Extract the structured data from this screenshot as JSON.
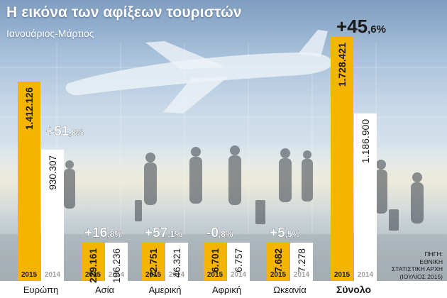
{
  "title": "Η εικόνα των αφίξεων τουριστών",
  "subtitle": "Ιανουάριος-Μάρτιος",
  "source_lines": [
    "ΠΗΓΗ:",
    "ΕΘΝΙΚΗ",
    "ΣΤΑΤΙΣΤΙΚΗ ΑΡΧΗ",
    "(ΙΟΥΛΙΟΣ 2015)"
  ],
  "colors": {
    "bar_2015": "#f5b400",
    "bar_2014": "#ffffff",
    "text_dark": "#1a1a1a",
    "text_light": "#ffffff"
  },
  "chart_data": {
    "type": "bar",
    "categories": [
      "Ευρώπη",
      "Ασία",
      "Αμερική",
      "Αφρική",
      "Ωκεανία",
      "Σύνολο"
    ],
    "highlight_category": "Σύνολο",
    "series": [
      {
        "name": "2015",
        "values": [
          1412126,
          229161,
          72751,
          6701,
          7682,
          1728421
        ],
        "labels": [
          "1.412.126",
          "229.161",
          "72.751",
          "6.701",
          "7.682",
          "1.728.421"
        ]
      },
      {
        "name": "2014",
        "values": [
          930307,
          196236,
          46321,
          6757,
          7278,
          1186900
        ],
        "labels": [
          "930.307",
          "196.236",
          "46.321",
          "6.757",
          "7.278",
          "1.186.900"
        ]
      }
    ],
    "change_labels": [
      {
        "sign": "+",
        "integer": "51",
        "decimal": ",8",
        "unit": "%"
      },
      {
        "sign": "+",
        "integer": "16",
        "decimal": ",8",
        "unit": "%"
      },
      {
        "sign": "+",
        "integer": "57",
        "decimal": ",1",
        "unit": "%"
      },
      {
        "sign": "-",
        "integer": "0",
        "decimal": ",8",
        "unit": "%"
      },
      {
        "sign": "+",
        "integer": "5",
        "decimal": ",5",
        "unit": "%"
      },
      {
        "sign": "+",
        "integer": "45",
        "decimal": ",6",
        "unit": "%"
      }
    ]
  }
}
